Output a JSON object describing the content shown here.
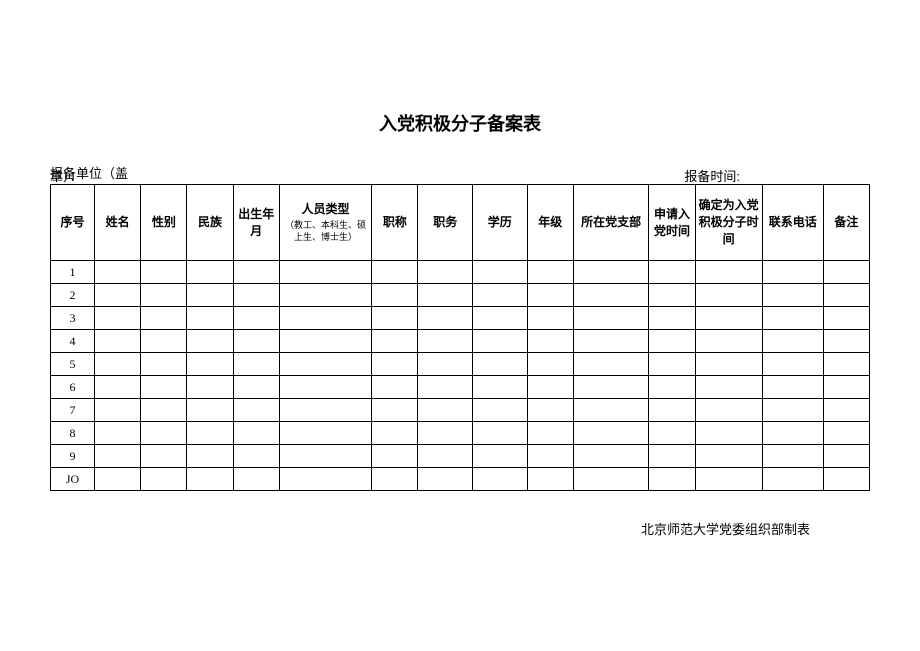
{
  "title": "入党积极分子备案表",
  "meta": {
    "left_line1": "报备单位（盖",
    "left_line2": "章）：",
    "right": "报备时间:"
  },
  "columns": {
    "seq": "序号",
    "name": "姓名",
    "gender": "性别",
    "ethnic": "民族",
    "birth": "出生年月",
    "type_main": "人员类型",
    "type_sub": "（教工、本科生、硕上生、博士生）",
    "title": "职称",
    "duty": "职务",
    "edu": "学历",
    "grade": "年级",
    "branch": "所在党支部",
    "apply": "申请入党时间",
    "confirm": "确定为入党积极分子时间",
    "phone": "联系电话",
    "note": "备注"
  },
  "rows": [
    "1",
    "2",
    "3",
    "4",
    "5",
    "6",
    "7",
    "8",
    "9",
    "JO"
  ],
  "footer": "北京师范大学党委组织部制表"
}
